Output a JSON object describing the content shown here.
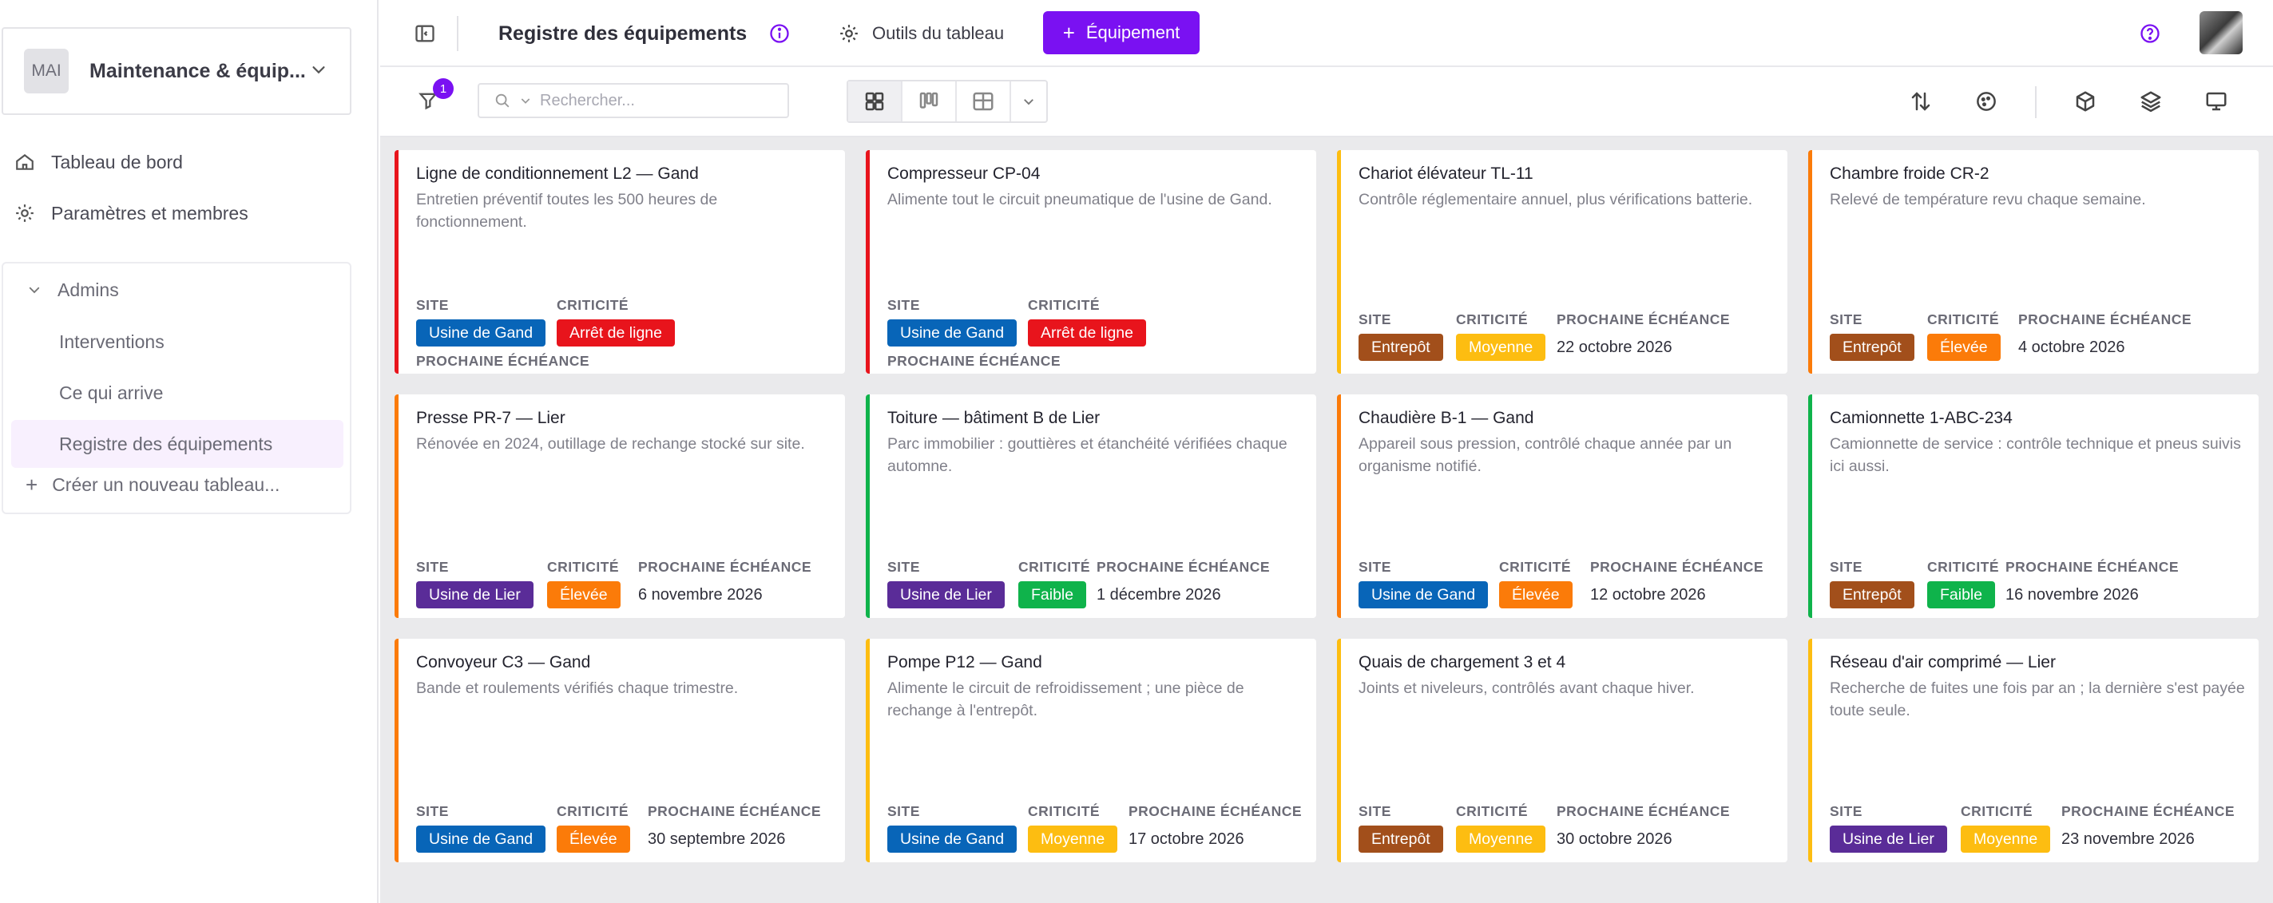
{
  "workspace": {
    "avatar": "MAI",
    "name": "Maintenance & équip..."
  },
  "nav": {
    "dashboard": "Tableau de bord",
    "settings": "Paramètres et membres"
  },
  "group": {
    "title": "Admins",
    "items": [
      "Interventions",
      "Ce qui arrive",
      "Registre des équipements"
    ],
    "new_board": "Créer un nouveau tableau..."
  },
  "header": {
    "title": "Registre des équipements",
    "tools": "Outils du tableau",
    "add_button": "Équipement"
  },
  "toolbar": {
    "filter_count": "1",
    "search_placeholder": "Rechercher..."
  },
  "labels": {
    "site": "SITE",
    "criticality": "CRITICITÉ",
    "due": "PROCHAINE ÉCHÉANCE"
  },
  "colors": {
    "accent": "#7a11f2",
    "site_gand": "#0865b8",
    "site_lier": "#5a2c98",
    "site_entrepot": "#a24f1b",
    "crit_arret": "#e8141c",
    "crit_elevee": "#fb7b09",
    "crit_moyenne": "#fdbd11",
    "crit_faible": "#0fb34b"
  },
  "cards": [
    {
      "title": "Ligne de conditionnement L2 — Gand",
      "desc": "Entretien préventif toutes les 500 heures de fonctionnement.",
      "site": "Usine de Gand",
      "crit": "Arrêt de ligne",
      "due": "",
      "border": "#e8141c"
    },
    {
      "title": "Compresseur CP-04",
      "desc": "Alimente tout le circuit pneumatique de l'usine de Gand.",
      "site": "Usine de Gand",
      "crit": "Arrêt de ligne",
      "due": "",
      "border": "#e8141c"
    },
    {
      "title": "Chariot élévateur TL-11",
      "desc": "Contrôle réglementaire annuel, plus vérifications batterie.",
      "site": "Entrepôt",
      "crit": "Moyenne",
      "due": "22 octobre 2026",
      "border": "#fdbd11"
    },
    {
      "title": "Chambre froide CR-2",
      "desc": "Relevé de température revu chaque semaine.",
      "site": "Entrepôt",
      "crit": "Élevée",
      "due": "4 octobre 2026",
      "border": "#fb7b09"
    },
    {
      "title": "Presse PR-7 — Lier",
      "desc": "Rénovée en 2024, outillage de rechange stocké sur site.",
      "site": "Usine de Lier",
      "crit": "Élevée",
      "due": "6 novembre 2026",
      "border": "#fb7b09"
    },
    {
      "title": "Toiture — bâtiment B de Lier",
      "desc": "Parc immobilier : gouttières et étanchéité vérifiées chaque automne.",
      "site": "Usine de Lier",
      "crit": "Faible",
      "due": "1 décembre 2026",
      "border": "#0fb34b"
    },
    {
      "title": "Chaudière B-1 — Gand",
      "desc": "Appareil sous pression, contrôlé chaque année par un organisme notifié.",
      "site": "Usine de Gand",
      "crit": "Élevée",
      "due": "12 octobre 2026",
      "border": "#fb7b09"
    },
    {
      "title": "Camionnette 1-ABC-234",
      "desc": "Camionnette de service : contrôle technique et pneus suivis ici aussi.",
      "site": "Entrepôt",
      "crit": "Faible",
      "due": "16 novembre 2026",
      "border": "#0fb34b"
    },
    {
      "title": "Convoyeur C3 — Gand",
      "desc": "Bande et roulements vérifiés chaque trimestre.",
      "site": "Usine de Gand",
      "crit": "Élevée",
      "due": "30 septembre 2026",
      "border": "#fb7b09"
    },
    {
      "title": "Pompe P12 — Gand",
      "desc": "Alimente le circuit de refroidissement ; une pièce de rechange à l'entrepôt.",
      "site": "Usine de Gand",
      "crit": "Moyenne",
      "due": "17 octobre 2026",
      "border": "#fdbd11"
    },
    {
      "title": "Quais de chargement 3 et 4",
      "desc": "Joints et niveleurs, contrôlés avant chaque hiver.",
      "site": "Entrepôt",
      "crit": "Moyenne",
      "due": "30 octobre 2026",
      "border": "#fdbd11"
    },
    {
      "title": "Réseau d'air comprimé — Lier",
      "desc": "Recherche de fuites une fois par an ; la dernière s'est payée toute seule.",
      "site": "Usine de Lier",
      "crit": "Moyenne",
      "due": "23 novembre 2026",
      "border": "#fdbd11"
    }
  ]
}
